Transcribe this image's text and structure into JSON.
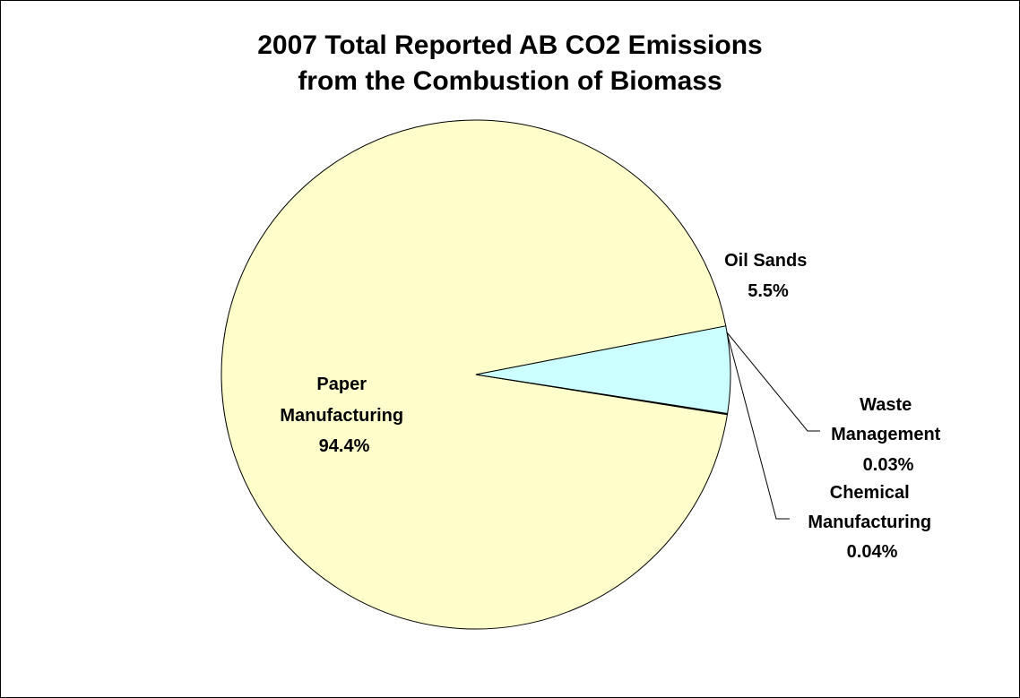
{
  "chart_data": {
    "type": "pie",
    "title_lines": [
      "2007 Total Reported AB CO2 Emissions",
      "from the Combustion of Biomass"
    ],
    "slices": [
      {
        "name_lines": [
          "Paper",
          "Manufacturing"
        ],
        "value_label": "94.4%",
        "value": 94.4,
        "color": "#FFFFCC"
      },
      {
        "name_lines": [
          "Oil Sands"
        ],
        "value_label": "5.5%",
        "value": 5.5,
        "color": "#CCFFFF"
      },
      {
        "name_lines": [
          "Waste",
          "Management"
        ],
        "value_label": "0.03%",
        "value": 0.03,
        "color": "#FFFFCC"
      },
      {
        "name_lines": [
          "Chemical",
          "Manufacturing"
        ],
        "value_label": "0.04%",
        "value": 0.04,
        "color": "#FFFFCC"
      }
    ],
    "legend": "none"
  }
}
